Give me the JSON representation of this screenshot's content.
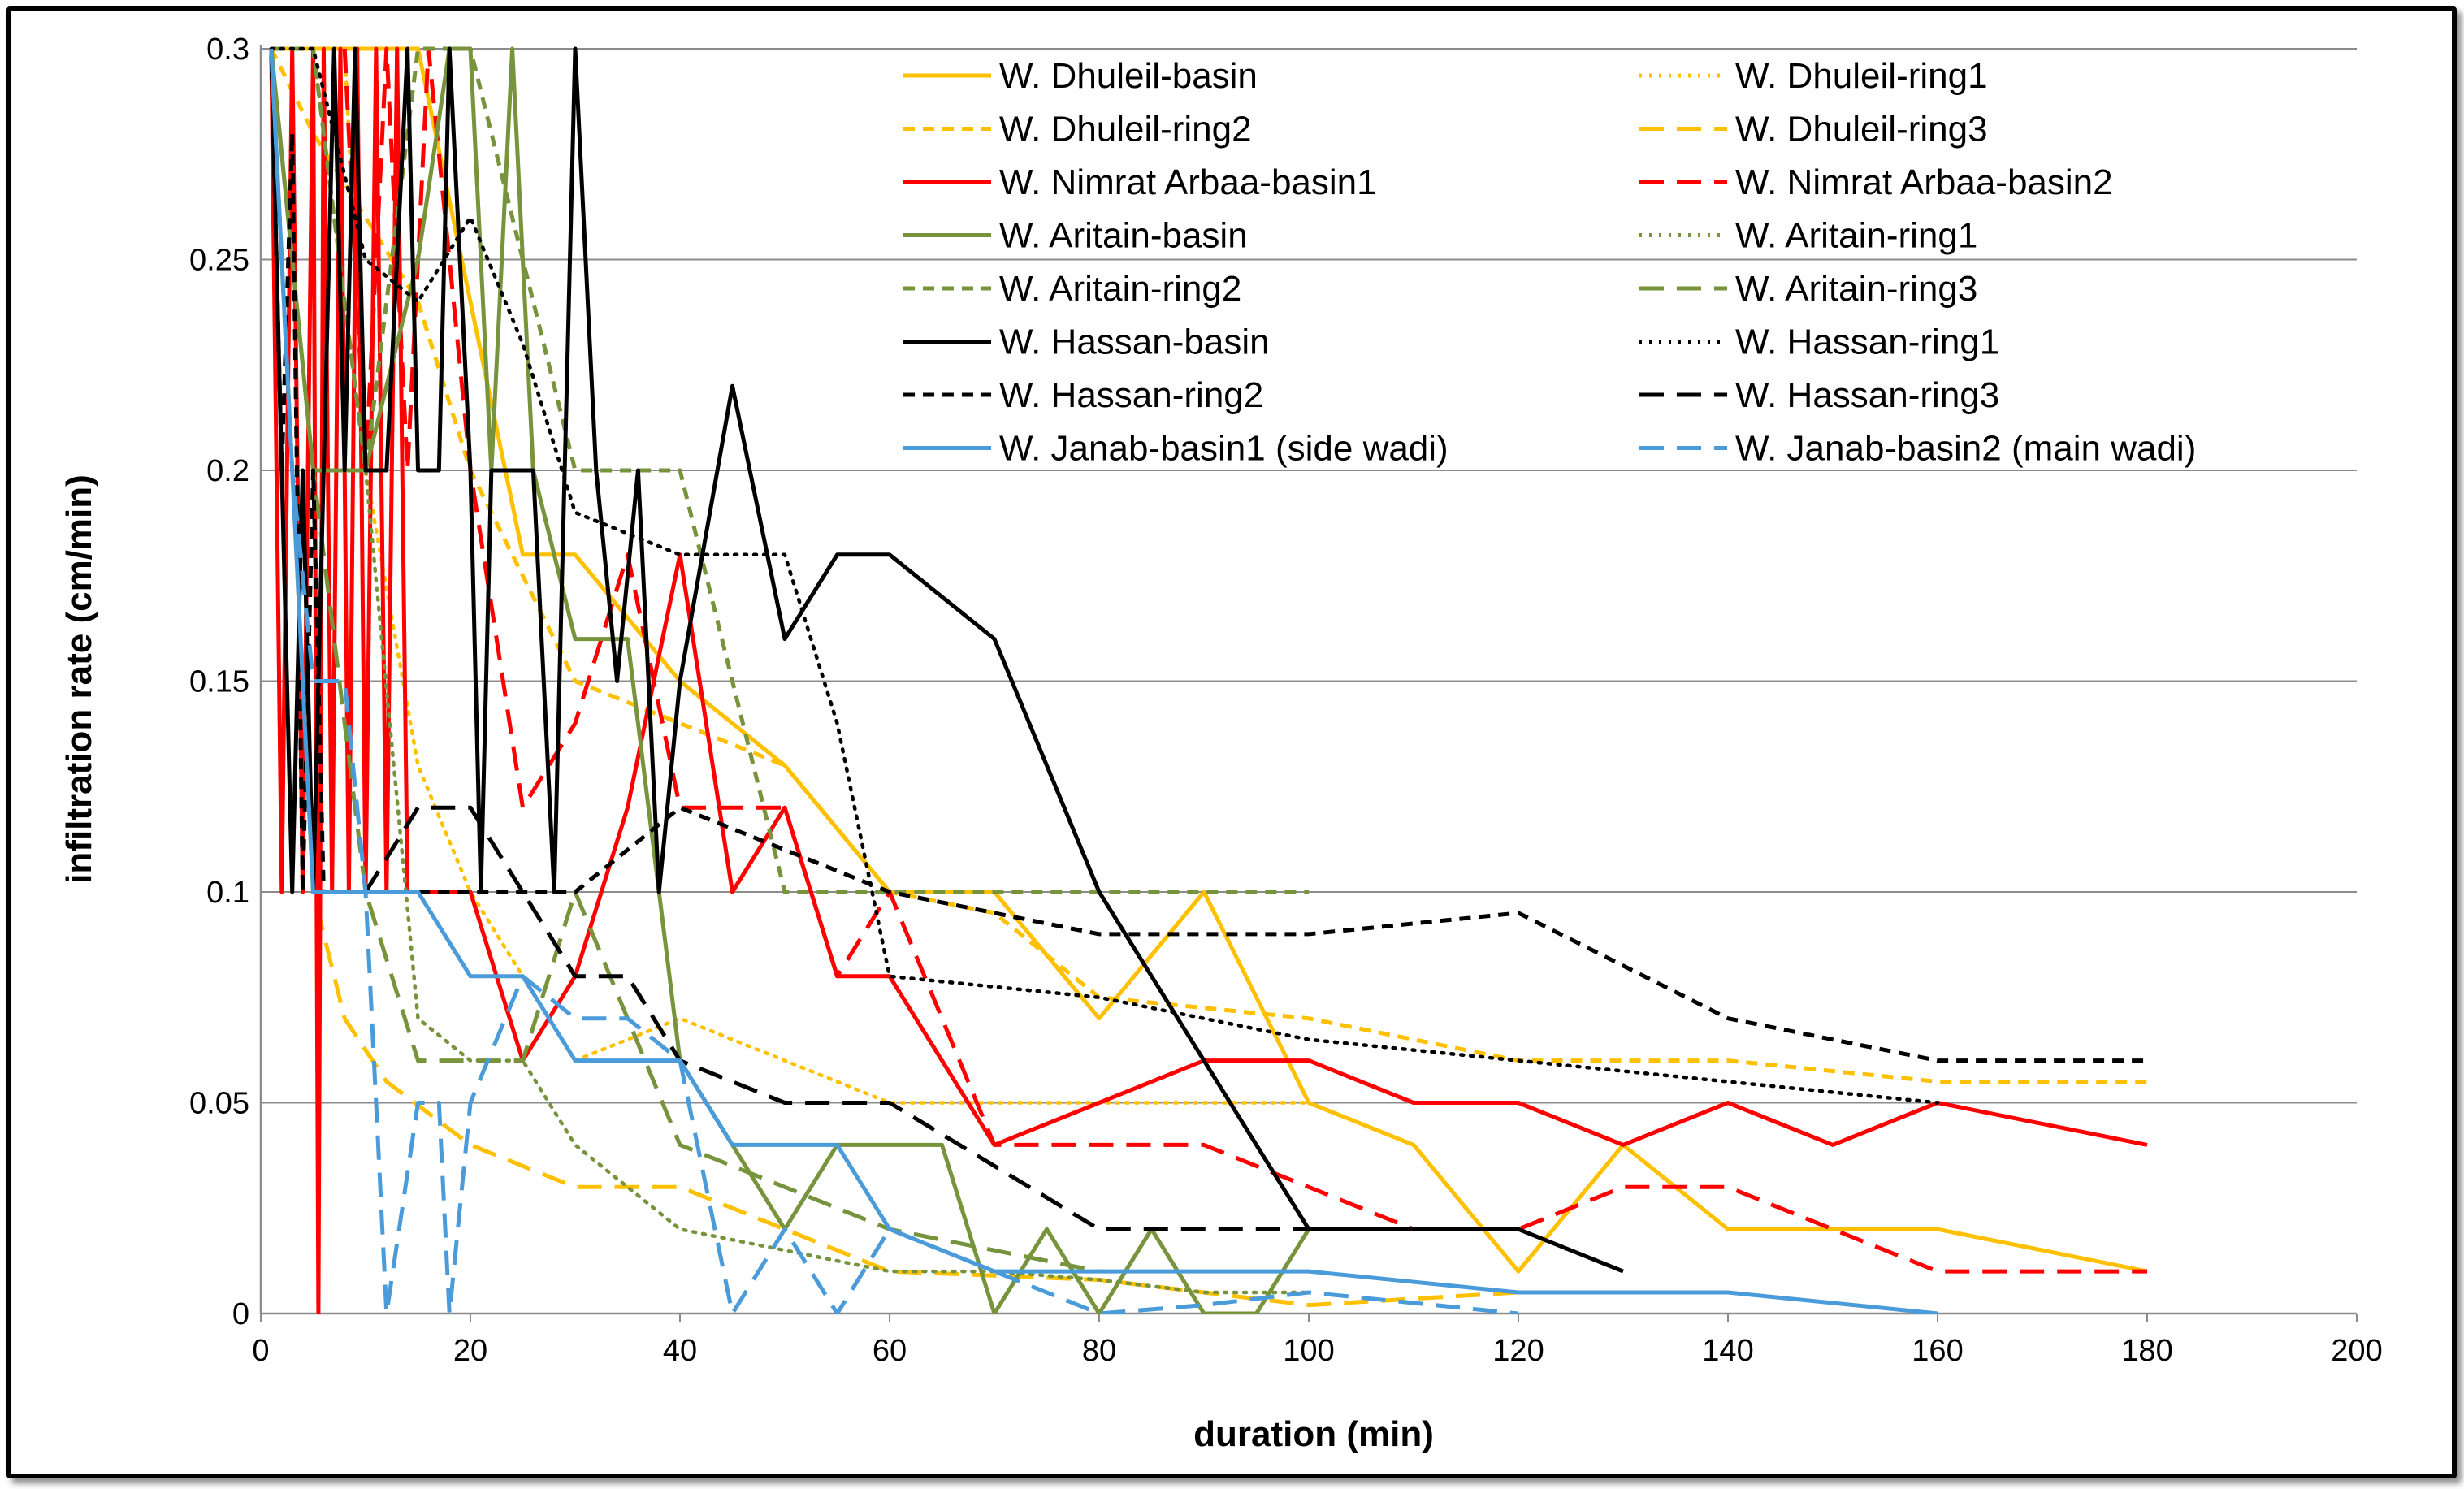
{
  "chart_data": {
    "type": "line",
    "title": "",
    "xlabel": "duration (min)",
    "ylabel": "infiltration rate (cm/min)",
    "xlim": [
      0,
      200
    ],
    "ylim": [
      0,
      0.3
    ],
    "x_ticks": [
      "0",
      "20",
      "40",
      "60",
      "80",
      "100",
      "120",
      "140",
      "160",
      "180",
      "200"
    ],
    "y_ticks": [
      "0",
      "0.05",
      "0.1",
      "0.15",
      "0.2",
      "0.25",
      "0.3"
    ],
    "grid": "horizontal",
    "legend_position": "top-right",
    "series": [
      {
        "name": "W. Dhuleil-basin",
        "color": "#FFC000",
        "dash": "solid",
        "x": [
          1,
          3,
          5,
          7,
          10,
          15,
          20,
          25,
          30,
          40,
          50,
          60,
          70,
          80,
          90,
          100,
          110,
          120,
          130,
          140,
          160,
          180
        ],
        "y": [
          0.3,
          0.3,
          0.3,
          0.3,
          0.3,
          0.3,
          0.24,
          0.18,
          0.18,
          0.15,
          0.13,
          0.1,
          0.1,
          0.07,
          0.1,
          0.05,
          0.04,
          0.01,
          0.04,
          0.02,
          0.02,
          0.01
        ]
      },
      {
        "name": "W. Dhuleil-ring1",
        "color": "#FFC000",
        "dash": "dot",
        "x": [
          1,
          3,
          5,
          8,
          10,
          15,
          20,
          30,
          40,
          60,
          100
        ],
        "y": [
          0.3,
          0.3,
          0.3,
          0.3,
          0.2,
          0.13,
          0.1,
          0.06,
          0.07,
          0.05,
          0.05
        ]
      },
      {
        "name": "W. Dhuleil-ring2",
        "color": "#FFC000",
        "dash": "shortdash",
        "x": [
          1,
          5,
          10,
          15,
          20,
          30,
          40,
          50,
          60,
          70,
          80,
          100,
          120,
          140,
          160,
          180
        ],
        "y": [
          0.3,
          0.28,
          0.26,
          0.24,
          0.2,
          0.15,
          0.14,
          0.13,
          0.1,
          0.095,
          0.075,
          0.07,
          0.06,
          0.06,
          0.055,
          0.055
        ]
      },
      {
        "name": "W. Dhuleil-ring3",
        "color": "#FFC000",
        "dash": "longdash",
        "x": [
          1,
          3,
          5,
          8,
          12,
          20,
          30,
          40,
          50,
          60,
          80,
          100,
          120
        ],
        "y": [
          0.3,
          0.2,
          0.1,
          0.07,
          0.055,
          0.04,
          0.03,
          0.03,
          0.02,
          0.01,
          0.008,
          0.002,
          0.005
        ]
      },
      {
        "name": "W. Nimrat Arbaa-basin1",
        "color": "#FF0000",
        "dash": "solid",
        "x": [
          1,
          2,
          3,
          4,
          5,
          5.5,
          6,
          6.8,
          7.6,
          8.4,
          9.2,
          10,
          11,
          12,
          13,
          14,
          15,
          20,
          25,
          30,
          35,
          40,
          45,
          50,
          55,
          60,
          70,
          80,
          90,
          100,
          110,
          120,
          130,
          140,
          150,
          160,
          180
        ],
        "y": [
          0.3,
          0.1,
          0.3,
          0.1,
          0.3,
          0.0,
          0.3,
          0.1,
          0.3,
          0.1,
          0.3,
          0.1,
          0.3,
          0.1,
          0.3,
          0.1,
          0.1,
          0.1,
          0.06,
          0.08,
          0.12,
          0.18,
          0.1,
          0.12,
          0.08,
          0.08,
          0.04,
          0.05,
          0.06,
          0.06,
          0.05,
          0.05,
          0.04,
          0.05,
          0.04,
          0.05,
          0.04
        ]
      },
      {
        "name": "W. Nimrat Arbaa-basin2",
        "color": "#FF0000",
        "dash": "longdash",
        "x": [
          8,
          10,
          12,
          14,
          16,
          20,
          25,
          30,
          35,
          40,
          50,
          55,
          60,
          70,
          80,
          90,
          100,
          110,
          120,
          130,
          140,
          150,
          160,
          180
        ],
        "y": [
          0.3,
          0.2,
          0.3,
          0.2,
          0.3,
          0.2,
          0.12,
          0.14,
          0.18,
          0.12,
          0.12,
          0.08,
          0.1,
          0.04,
          0.04,
          0.04,
          0.03,
          0.02,
          0.02,
          0.03,
          0.03,
          0.02,
          0.01,
          0.01
        ]
      },
      {
        "name": "W. Aritain-basin",
        "color": "#77933C",
        "dash": "solid",
        "x": [
          1,
          5,
          10,
          15,
          18,
          20,
          22,
          24,
          26,
          30,
          35,
          38,
          40,
          45,
          50,
          55,
          60,
          65,
          70,
          75,
          80,
          85,
          90,
          95,
          100
        ],
        "y": [
          0.3,
          0.2,
          0.2,
          0.25,
          0.3,
          0.3,
          0.2,
          0.3,
          0.2,
          0.16,
          0.16,
          0.1,
          0.06,
          0.04,
          0.02,
          0.04,
          0.04,
          0.04,
          0.0,
          0.02,
          0.0,
          0.02,
          0.0,
          0.0,
          0.02
        ]
      },
      {
        "name": "W. Aritain-ring1",
        "color": "#77933C",
        "dash": "dot",
        "x": [
          1,
          5,
          10,
          15,
          20,
          25,
          30,
          40,
          50,
          60,
          70,
          80,
          90,
          100
        ],
        "y": [
          0.3,
          0.3,
          0.2,
          0.07,
          0.06,
          0.06,
          0.04,
          0.02,
          0.015,
          0.01,
          0.01,
          0.008,
          0.005,
          0.005
        ]
      },
      {
        "name": "W. Aritain-ring2",
        "color": "#77933C",
        "dash": "shortdash",
        "x": [
          1,
          5,
          10,
          15,
          20,
          25,
          30,
          35,
          40,
          45,
          50,
          60,
          70,
          80,
          90,
          100
        ],
        "y": [
          0.3,
          0.3,
          0.2,
          0.3,
          0.3,
          0.25,
          0.2,
          0.2,
          0.2,
          0.15,
          0.1,
          0.1,
          0.1,
          0.1,
          0.1,
          0.1
        ]
      },
      {
        "name": "W. Aritain-ring3",
        "color": "#77933C",
        "dash": "longdash",
        "x": [
          1,
          5,
          10,
          15,
          20,
          25,
          30,
          35,
          40,
          50,
          60,
          70,
          80
        ],
        "y": [
          0.3,
          0.2,
          0.1,
          0.06,
          0.06,
          0.06,
          0.1,
          0.07,
          0.04,
          0.03,
          0.02,
          0.015,
          0.01
        ]
      },
      {
        "name": "W. Hassan-basin",
        "color": "#000000",
        "dash": "solid",
        "x": [
          1,
          2,
          3,
          4,
          5,
          6,
          7,
          8,
          9,
          10,
          12,
          14,
          15,
          17,
          18,
          20,
          21,
          22,
          24,
          26,
          28,
          30,
          32,
          34,
          36,
          38,
          40,
          45,
          50,
          55,
          60,
          70,
          80,
          90,
          100,
          110,
          120,
          130
        ],
        "y": [
          0.3,
          0.2,
          0.1,
          0.2,
          0.1,
          0.2,
          0.3,
          0.2,
          0.3,
          0.2,
          0.2,
          0.3,
          0.2,
          0.2,
          0.3,
          0.2,
          0.1,
          0.2,
          0.2,
          0.2,
          0.1,
          0.3,
          0.2,
          0.15,
          0.2,
          0.1,
          0.15,
          0.22,
          0.16,
          0.18,
          0.18,
          0.16,
          0.1,
          0.06,
          0.02,
          0.02,
          0.02,
          0.01
        ]
      },
      {
        "name": "W. Hassan-ring1",
        "color": "#000000",
        "dash": "dot",
        "x": [
          1,
          5,
          10,
          15,
          20,
          25,
          30,
          40,
          50,
          55,
          60,
          80,
          100,
          120,
          140,
          160
        ],
        "y": [
          0.3,
          0.3,
          0.25,
          0.24,
          0.26,
          0.23,
          0.19,
          0.18,
          0.18,
          0.14,
          0.08,
          0.075,
          0.065,
          0.06,
          0.055,
          0.05
        ]
      },
      {
        "name": "W. Hassan-ring2",
        "color": "#000000",
        "dash": "shortdash",
        "x": [
          1,
          2,
          3,
          4,
          5,
          6,
          8,
          10,
          15,
          20,
          25,
          30,
          40,
          50,
          60,
          70,
          80,
          100,
          120,
          140,
          160,
          180
        ],
        "y": [
          0.3,
          0.2,
          0.28,
          0.1,
          0.2,
          0.1,
          0.1,
          0.1,
          0.1,
          0.1,
          0.1,
          0.1,
          0.12,
          0.11,
          0.1,
          0.095,
          0.09,
          0.09,
          0.095,
          0.07,
          0.06,
          0.06
        ]
      },
      {
        "name": "W. Hassan-ring3",
        "color": "#000000",
        "dash": "longdash",
        "x": [
          10,
          15,
          20,
          25,
          30,
          35,
          40,
          50,
          60,
          70,
          80,
          90,
          100
        ],
        "y": [
          0.1,
          0.12,
          0.12,
          0.1,
          0.08,
          0.08,
          0.06,
          0.05,
          0.05,
          0.035,
          0.02,
          0.02,
          0.02
        ]
      },
      {
        "name": "W. Janab-basin1 (side wadi)",
        "color": "#4A9BD9",
        "dash": "solid",
        "x": [
          1,
          3,
          5,
          10,
          15,
          20,
          25,
          30,
          35,
          40,
          45,
          50,
          55,
          60,
          70,
          80,
          90,
          100,
          120,
          140,
          160
        ],
        "y": [
          0.3,
          0.2,
          0.1,
          0.1,
          0.1,
          0.08,
          0.08,
          0.06,
          0.06,
          0.06,
          0.04,
          0.04,
          0.04,
          0.02,
          0.01,
          0.01,
          0.01,
          0.01,
          0.005,
          0.005,
          0.0
        ]
      },
      {
        "name": "W. Janab-basin2 (main wadi)",
        "color": "#4A9BD9",
        "dash": "longdash",
        "x": [
          1,
          3,
          5,
          8,
          10,
          12,
          15,
          17,
          18,
          20,
          25,
          30,
          35,
          40,
          45,
          50,
          55,
          60,
          70,
          80,
          90,
          100,
          120
        ],
        "y": [
          0.3,
          0.2,
          0.15,
          0.15,
          0.1,
          0.0,
          0.05,
          0.05,
          0.0,
          0.05,
          0.08,
          0.07,
          0.07,
          0.06,
          0.0,
          0.02,
          0.0,
          0.02,
          0.01,
          0.0,
          0.002,
          0.005,
          0.0
        ]
      }
    ]
  }
}
